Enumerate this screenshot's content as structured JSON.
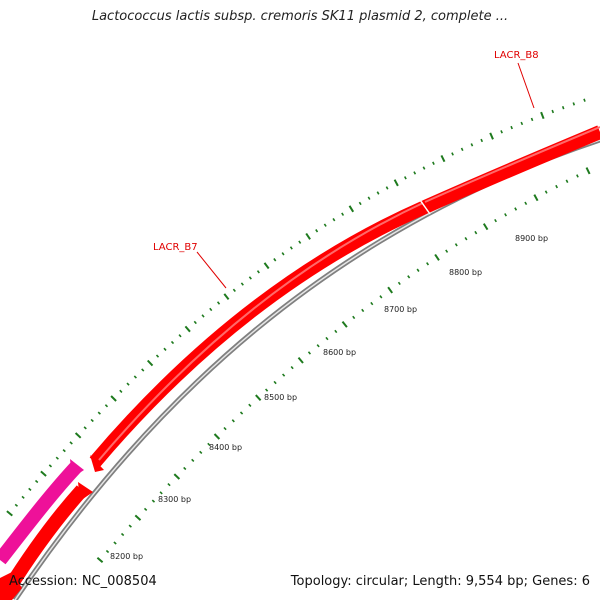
{
  "title": "Lactococcus lactis subsp. cremoris SK11 plasmid 2, complete ...",
  "footer": {
    "accession": "Accession: NC_008504",
    "summary": "Topology: circular; Length: 9,554 bp; Genes: 6"
  },
  "genes": [
    {
      "id": "LACR_B7",
      "label": "LACR_B7",
      "color": "#ff0000"
    },
    {
      "id": "LACR_B8",
      "label": "LACR_B8",
      "color": "#ff0000"
    },
    {
      "id": "upstream-gene-outer",
      "label": "",
      "color": "#ee1199"
    },
    {
      "id": "upstream-gene-inner",
      "label": "",
      "color": "#ff0000"
    }
  ],
  "scale": {
    "unit": "bp",
    "tick_labels": [
      "8200 bp",
      "8300 bp",
      "8400 bp",
      "8500 bp",
      "8600 bp",
      "8700 bp",
      "8800 bp",
      "8900 bp"
    ]
  },
  "colors": {
    "gene": "#ff0000",
    "gene_highlight": "#ff5050",
    "pink_gene": "#ee1199",
    "backbone": "#909090",
    "ticks": "#1e7a1e",
    "label": "#e00000"
  }
}
